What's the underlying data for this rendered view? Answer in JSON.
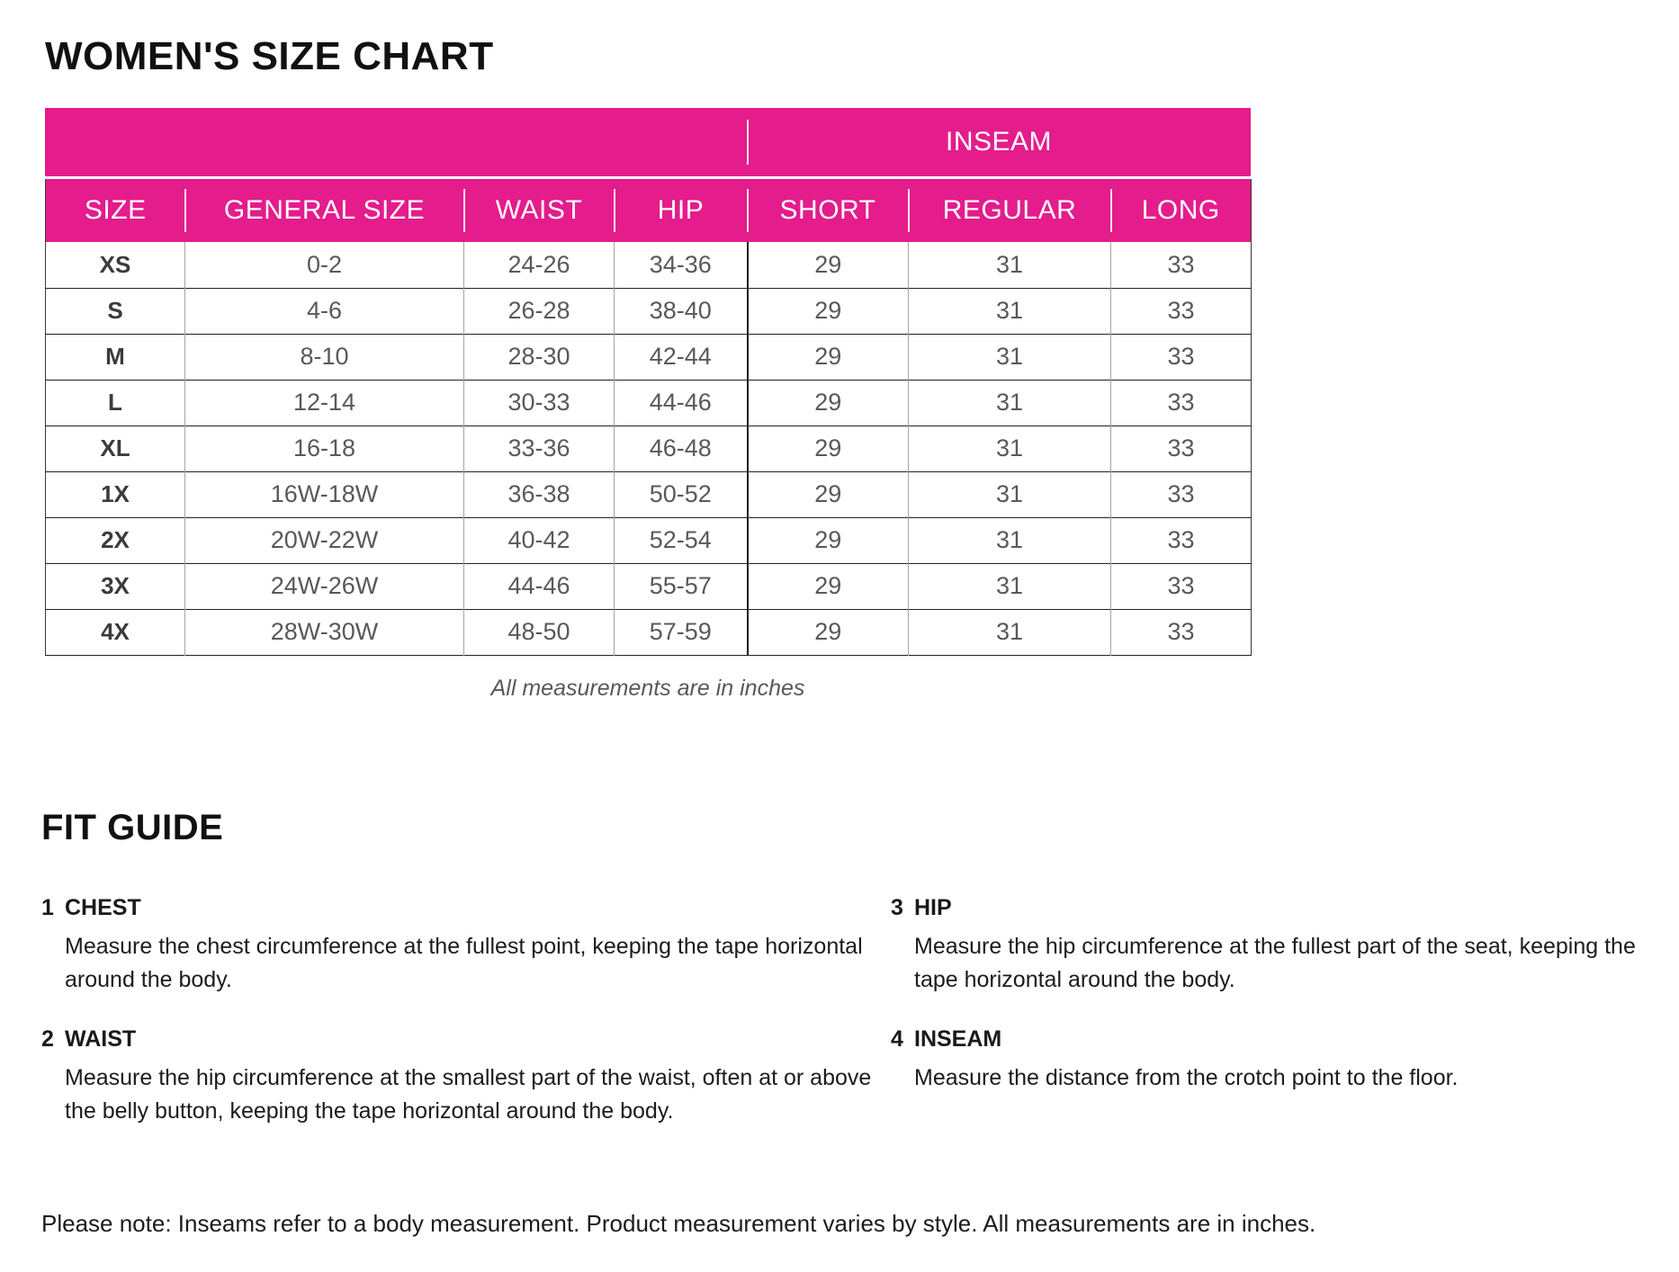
{
  "title": "WOMEN'S SIZE CHART",
  "colors": {
    "header_pink": "#E41C8C",
    "header_text": "#FFFFFF"
  },
  "table": {
    "group_header": "INSEAM",
    "columns": [
      "SIZE",
      "GENERAL SIZE",
      "WAIST",
      "HIP",
      "SHORT",
      "REGULAR",
      "LONG"
    ],
    "rows": [
      [
        "XS",
        "0-2",
        "24-26",
        "34-36",
        "29",
        "31",
        "33"
      ],
      [
        "S",
        "4-6",
        "26-28",
        "38-40",
        "29",
        "31",
        "33"
      ],
      [
        "M",
        "8-10",
        "28-30",
        "42-44",
        "29",
        "31",
        "33"
      ],
      [
        "L",
        "12-14",
        "30-33",
        "44-46",
        "29",
        "31",
        "33"
      ],
      [
        "XL",
        "16-18",
        "33-36",
        "46-48",
        "29",
        "31",
        "33"
      ],
      [
        "1X",
        "16W-18W",
        "36-38",
        "50-52",
        "29",
        "31",
        "33"
      ],
      [
        "2X",
        "20W-22W",
        "40-42",
        "52-54",
        "29",
        "31",
        "33"
      ],
      [
        "3X",
        "24W-26W",
        "44-46",
        "55-57",
        "29",
        "31",
        "33"
      ],
      [
        "4X",
        "28W-30W",
        "48-50",
        "57-59",
        "29",
        "31",
        "33"
      ]
    ],
    "footnote": "All measurements are in inches"
  },
  "fit_guide": {
    "title": "FIT GUIDE",
    "items": [
      {
        "number": "1",
        "label": "CHEST",
        "description": "Measure the chest circumference at the fullest point, keeping the tape horizontal around the body."
      },
      {
        "number": "2",
        "label": "WAIST",
        "description": "Measure the hip circumference at the smallest part of the waist, often at or above the belly button, keeping the tape horizontal around the body."
      },
      {
        "number": "3",
        "label": "HIP",
        "description": "Measure the hip circumference at the fullest part of the seat, keeping the tape horizontal around the body."
      },
      {
        "number": "4",
        "label": "INSEAM",
        "description": "Measure the distance from the crotch point to the floor."
      }
    ]
  },
  "bottom_note": "Please note: Inseams refer to a body measurement. Product measurement varies by style. All measurements are in inches."
}
